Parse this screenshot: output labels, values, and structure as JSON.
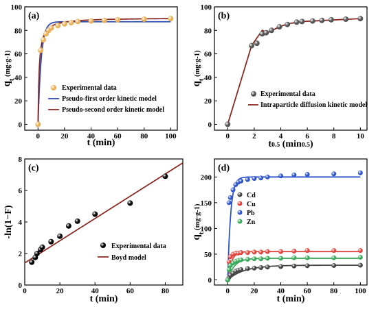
{
  "chart_data": [
    {
      "panel_label": "(a)",
      "type": "scatter",
      "ylabel_main": "q",
      "ylabel_sub": "t",
      "ylabel_unit": "(mg·g",
      "ylabel_exp": "-1",
      "ylabel_close": ")",
      "xlabel": "t (min)",
      "xlim": [
        -10,
        105
      ],
      "ylim": [
        -5,
        100
      ],
      "xticks": [
        0,
        20,
        40,
        60,
        80,
        100
      ],
      "yticks": [
        0,
        20,
        40,
        60,
        80,
        100
      ],
      "legend_position": "bottom-right",
      "colors": {
        "exp": "#e8b15a",
        "pfo": "#2f4bb4",
        "pso": "#8b2a23"
      },
      "series": [
        {
          "name": "Experimental data",
          "kind": "points",
          "x": [
            0,
            2,
            4,
            6,
            8,
            10,
            15,
            20,
            25,
            30,
            40,
            50,
            60,
            80,
            100
          ],
          "y": [
            0,
            63,
            72,
            77,
            80,
            82,
            84,
            85.5,
            86.5,
            87.5,
            88,
            88.5,
            89,
            89.5,
            90
          ]
        },
        {
          "name": "Pseudo-first order kinetic model",
          "kind": "model",
          "model": "pfo",
          "qe": 87.3,
          "k": 0.42
        },
        {
          "name": "Pseudo-second order kinetic model",
          "kind": "model",
          "model": "pso",
          "qe": 90.8,
          "k": 0.0125
        }
      ]
    },
    {
      "panel_label": "(b)",
      "type": "scatter",
      "ylabel_main": "q",
      "ylabel_sub": "t",
      "ylabel_unit": "(mg·g",
      "ylabel_exp": "-1",
      "ylabel_close": ")",
      "xlabel_main": "t",
      "xlabel_sup": "0.5",
      "xlabel_unit": " (min",
      "xlabel_unit_sup": "0.5",
      "xlabel_close": ")",
      "xlim": [
        -1,
        10.5
      ],
      "ylim": [
        -5,
        100
      ],
      "xticks": [
        0,
        2,
        4,
        6,
        8,
        10
      ],
      "yticks": [
        0,
        20,
        40,
        60,
        80,
        100
      ],
      "legend_position": "bottom-right",
      "colors": {
        "exp": "#555555",
        "line": "#8b2a23"
      },
      "series": [
        {
          "name": "Experimental data",
          "kind": "points",
          "x": [
            0,
            1.8,
            2.2,
            2.6,
            2.9,
            3.3,
            3.9,
            4.5,
            5.2,
            5.6,
            6.4,
            7.1,
            7.8,
            8.9,
            10
          ],
          "y": [
            0,
            67,
            69,
            77,
            78,
            80,
            83,
            85,
            87,
            87.5,
            88,
            88.5,
            89,
            89.5,
            90
          ]
        },
        {
          "name": "Intraparticle diffusion kinetic model",
          "kind": "line",
          "x": [
            0,
            1.8,
            2.6,
            3.0,
            3.9,
            4.5,
            5.6,
            10
          ],
          "y": [
            0,
            67,
            80,
            78,
            83,
            85.5,
            87.5,
            90
          ]
        }
      ]
    },
    {
      "panel_label": "(c)",
      "type": "scatter",
      "ylabel": "-ln(1−F)",
      "xlabel": "t (min)",
      "xlim": [
        0,
        90
      ],
      "ylim": [
        0,
        8
      ],
      "xticks": [
        0,
        20,
        40,
        60,
        80
      ],
      "yticks": [
        0,
        2,
        4,
        6,
        8
      ],
      "legend_position": "bottom-right",
      "colors": {
        "exp": "#000000",
        "line": "#8b2a23"
      },
      "series": [
        {
          "name": "Experimental data",
          "kind": "points",
          "x": [
            4,
            6,
            7,
            9,
            10,
            15,
            20,
            25,
            30,
            40,
            60,
            80
          ],
          "y": [
            1.45,
            1.75,
            2.0,
            2.25,
            2.4,
            2.75,
            3.1,
            3.75,
            4.05,
            4.5,
            5.2,
            6.9
          ]
        },
        {
          "name": "Boyd model",
          "kind": "line",
          "x": [
            0,
            90
          ],
          "y": [
            1.4,
            7.75
          ]
        }
      ]
    },
    {
      "panel_label": "(d)",
      "type": "scatter",
      "ylabel_main": "q",
      "ylabel_sub": "t",
      "ylabel_unit": "(mg·g",
      "ylabel_exp": "-1",
      "ylabel_close": ")",
      "xlabel": "t (min)",
      "xlim": [
        -10,
        105
      ],
      "ylim": [
        -10,
        235
      ],
      "xticks": [
        0,
        20,
        40,
        60,
        80,
        100
      ],
      "yticks": [
        0,
        50,
        100,
        150,
        200
      ],
      "legend_position": "center",
      "x_points": [
        0,
        1,
        2,
        4,
        6,
        8,
        10,
        15,
        20,
        25,
        30,
        40,
        50,
        60,
        80,
        100
      ],
      "series": [
        {
          "name": "Cd",
          "color": "#444444",
          "qe": 28.5,
          "k": 0.08,
          "y": [
            0,
            5,
            9,
            13,
            17,
            19,
            20,
            22,
            23,
            24,
            25,
            26,
            27,
            27.5,
            28,
            28.5
          ]
        },
        {
          "name": "Cu",
          "color": "#e0443e",
          "qe": 55,
          "k": 0.35,
          "y": [
            0,
            35,
            45,
            50,
            52,
            52,
            53,
            53,
            54,
            54,
            55,
            55,
            56,
            57,
            57,
            57
          ]
        },
        {
          "name": "Pb",
          "color": "#2f54c8",
          "qe": 200,
          "k": 0.45,
          "y": [
            0,
            150,
            160,
            175,
            185,
            190,
            192,
            195,
            197,
            198,
            200,
            202,
            204,
            205,
            206,
            208
          ]
        },
        {
          "name": "Zn",
          "color": "#3aa85a",
          "qe": 42,
          "k": 0.2,
          "y": [
            0,
            20,
            28,
            33,
            36,
            38,
            39,
            40,
            41,
            41,
            42,
            42,
            43,
            43,
            43,
            44
          ]
        }
      ]
    }
  ]
}
